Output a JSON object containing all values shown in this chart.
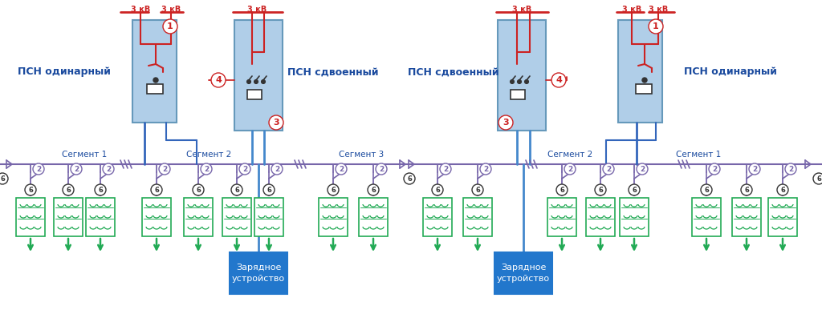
{
  "bg_color": "#ffffff",
  "fig_width": 10.24,
  "fig_height": 3.97,
  "colors": {
    "red": "#cc2222",
    "blue_dark": "#1a4a9e",
    "blue_line": "#3366bb",
    "blue_line2": "#4488cc",
    "purple": "#7766aa",
    "green": "#22aa55",
    "box_fill": "#b0cee8",
    "charger_fill": "#2277cc",
    "white": "#ffffff",
    "black": "#000000",
    "dark_gray": "#333333"
  },
  "labels": {
    "psn_single": "ПСН одинарный",
    "psn_double": "ПСН сдвоенный",
    "seg1": "Сегмент 1",
    "seg2": "Сегмент 2",
    "seg3": "Сегмент 3",
    "charger": "Зарядное\nустройство",
    "kv3": "3 кВ"
  }
}
